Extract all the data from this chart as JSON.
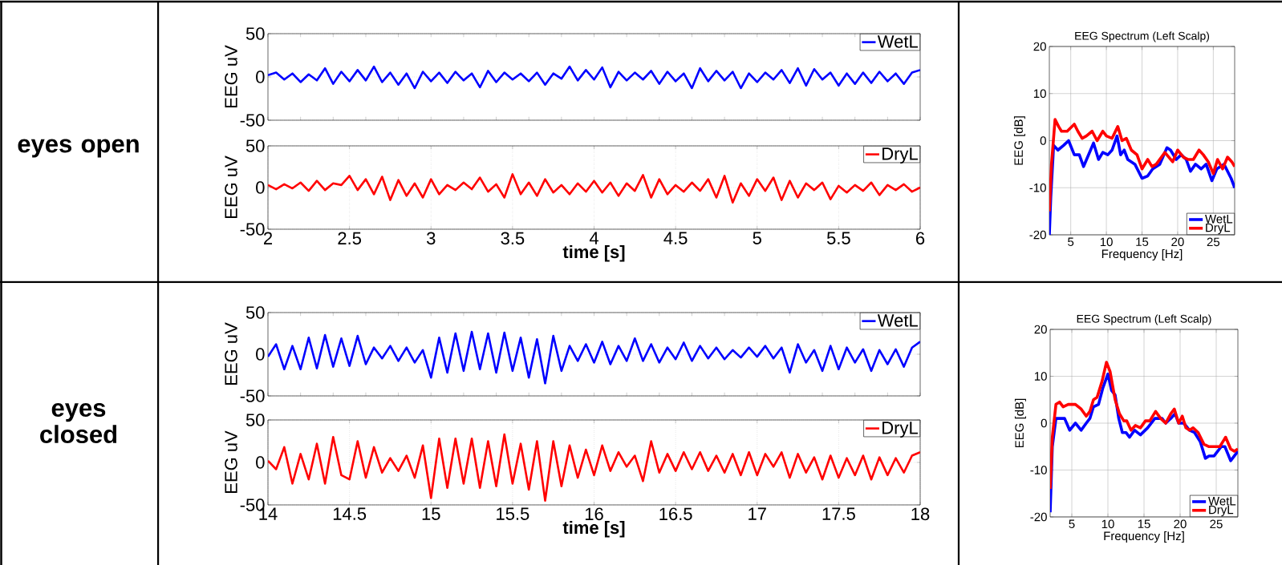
{
  "chart_data": [
    {
      "type": "line",
      "ylabel": "EEG uV",
      "annotations": [
        "eyes open"
      ],
      "xlim": [
        2,
        6
      ],
      "ylim": [
        -50,
        50
      ],
      "yticks": [
        -50,
        0,
        50
      ],
      "grid": "y",
      "legend": "top right",
      "tick_labels": "y",
      "x": [
        2,
        2.05,
        2.1,
        2.15,
        2.2,
        2.25,
        2.3,
        2.35,
        2.4,
        2.45,
        2.5,
        2.55,
        2.6,
        2.65,
        2.7,
        2.75,
        2.8,
        2.85,
        2.9,
        2.95,
        3,
        3.05,
        3.1,
        3.15,
        3.2,
        3.25,
        3.3,
        3.35,
        3.4,
        3.45,
        3.5,
        3.55,
        3.6,
        3.65,
        3.7,
        3.75,
        3.8,
        3.85,
        3.9,
        3.95,
        4,
        4.05,
        4.1,
        4.15,
        4.2,
        4.25,
        4.3,
        4.35,
        4.4,
        4.45,
        4.5,
        4.55,
        4.6,
        4.65,
        4.7,
        4.75,
        4.8,
        4.85,
        4.9,
        4.95,
        5,
        5.05,
        5.1,
        5.15,
        5.2,
        5.25,
        5.3,
        5.35,
        5.4,
        5.45,
        5.5,
        5.55,
        5.6,
        5.65,
        5.7,
        5.75,
        5.8,
        5.85,
        5.9,
        5.95,
        6
      ],
      "series": [
        {
          "name": "WetL",
          "color": "#0000ff",
          "values": [
            2,
            5,
            -3,
            4,
            -6,
            3,
            -4,
            10,
            -8,
            6,
            -5,
            8,
            -4,
            12,
            -6,
            5,
            -9,
            4,
            -13,
            6,
            -5,
            5,
            -7,
            6,
            -4,
            4,
            -12,
            7,
            -6,
            5,
            -3,
            4,
            -5,
            5,
            -9,
            4,
            -2,
            12,
            -4,
            8,
            -3,
            11,
            -12,
            6,
            -4,
            5,
            -3,
            7,
            -8,
            6,
            -5,
            4,
            -13,
            10,
            -5,
            7,
            -4,
            6,
            -13,
            4,
            -6,
            5,
            -3,
            8,
            -7,
            10,
            -10,
            9,
            -3,
            5,
            -10,
            4,
            -8,
            5,
            -7,
            6,
            -5,
            4,
            -8,
            5,
            8
          ]
        }
      ]
    },
    {
      "type": "line",
      "ylabel": "EEG uV",
      "xlabel": "time [s]",
      "xlim": [
        2,
        6
      ],
      "ylim": [
        -50,
        50
      ],
      "xticks": [
        2,
        2.5,
        3,
        3.5,
        4,
        4.5,
        5,
        5.5,
        6
      ],
      "yticks": [
        -50,
        0,
        50
      ],
      "grid": true,
      "legend": "top right",
      "x": [
        2,
        2.05,
        2.1,
        2.15,
        2.2,
        2.25,
        2.3,
        2.35,
        2.4,
        2.45,
        2.5,
        2.55,
        2.6,
        2.65,
        2.7,
        2.75,
        2.8,
        2.85,
        2.9,
        2.95,
        3,
        3.05,
        3.1,
        3.15,
        3.2,
        3.25,
        3.3,
        3.35,
        3.4,
        3.45,
        3.5,
        3.55,
        3.6,
        3.65,
        3.7,
        3.75,
        3.8,
        3.85,
        3.9,
        3.95,
        4,
        4.05,
        4.1,
        4.15,
        4.2,
        4.25,
        4.3,
        4.35,
        4.4,
        4.45,
        4.5,
        4.55,
        4.6,
        4.65,
        4.7,
        4.75,
        4.8,
        4.85,
        4.9,
        4.95,
        5,
        5.05,
        5.1,
        5.15,
        5.2,
        5.25,
        5.3,
        5.35,
        5.4,
        5.45,
        5.5,
        5.55,
        5.6,
        5.65,
        5.7,
        5.75,
        5.8,
        5.85,
        5.9,
        5.95,
        6
      ],
      "series": [
        {
          "name": "DryL",
          "color": "#ff0000",
          "values": [
            3,
            -2,
            4,
            -1,
            6,
            -4,
            8,
            -3,
            5,
            3,
            14,
            -3,
            10,
            -8,
            13,
            -15,
            9,
            -10,
            5,
            -12,
            10,
            -8,
            3,
            -3,
            6,
            -2,
            12,
            -5,
            4,
            -12,
            16,
            -8,
            6,
            -10,
            10,
            -6,
            3,
            -8,
            5,
            -5,
            8,
            -6,
            6,
            -10,
            5,
            -4,
            15,
            -12,
            10,
            -8,
            3,
            -5,
            6,
            -4,
            10,
            -12,
            14,
            -18,
            5,
            -10,
            10,
            -4,
            12,
            -15,
            8,
            -12,
            5,
            -3,
            6,
            -14,
            2,
            -6,
            3,
            -4,
            6,
            -9,
            3,
            -3,
            4,
            -5,
            0
          ]
        }
      ]
    },
    {
      "type": "line",
      "title": "EEG Spectrum (Left Scalp)",
      "xlabel": "Frequency [Hz]",
      "ylabel": "EEG [dB]",
      "xlim": [
        2,
        28
      ],
      "ylim": [
        -20,
        20
      ],
      "xticks": [
        5,
        10,
        15,
        20,
        25
      ],
      "yticks": [
        -20,
        -10,
        0,
        10,
        20
      ],
      "grid": true,
      "legend": "bottom right",
      "series": [
        {
          "name": "WetL",
          "color": "#0000ff",
          "x": [
            2,
            2.2,
            2.6,
            3.2,
            4,
            4.7,
            5.5,
            6.2,
            6.8,
            7.5,
            8.2,
            8.9,
            9.5,
            10.2,
            10.8,
            11.5,
            12,
            12.5,
            13,
            14,
            15,
            15.8,
            16.5,
            17.5,
            18.5,
            19,
            19.8,
            20.5,
            21.2,
            21.8,
            22.5,
            23.3,
            24,
            24.8,
            25.5,
            26.5,
            27.5,
            28
          ],
          "values": [
            -20,
            -12,
            -1,
            -2,
            -1,
            0,
            -3,
            -3,
            -5.5,
            -3,
            -0.5,
            -4,
            -2.5,
            -3,
            -2,
            1,
            -3,
            -2,
            -4,
            -5,
            -8,
            -7.5,
            -6,
            -5,
            -1.5,
            -2,
            -4,
            -3,
            -4,
            -6.5,
            -5,
            -6,
            -5,
            -8.5,
            -6,
            -5,
            -8,
            -10
          ]
        },
        {
          "name": "DryL",
          "color": "#ff0000",
          "x": [
            2,
            2.3,
            2.8,
            3.3,
            3.7,
            4.5,
            5.5,
            6,
            6.6,
            7.2,
            8,
            8.7,
            9.5,
            10,
            10.8,
            11.6,
            12.2,
            12.8,
            13.5,
            14.3,
            15,
            15.8,
            16.4,
            17,
            18.2,
            19.3,
            20,
            20.8,
            21.5,
            22.2,
            23,
            23.6,
            24.3,
            25,
            25.6,
            26.3,
            27,
            27.6,
            28
          ],
          "values": [
            -15,
            -5,
            4.5,
            3,
            2,
            2,
            3.5,
            2,
            0.5,
            1,
            2,
            0,
            2,
            1,
            0.5,
            3,
            0,
            0.5,
            -2,
            -3,
            -6,
            -4,
            -5.5,
            -5,
            -2.5,
            -4.5,
            -2,
            -3.5,
            -4,
            -4,
            -2,
            -3,
            -4.5,
            -7,
            -4,
            -6,
            -3.5,
            -4.5,
            -5.5
          ]
        }
      ]
    },
    {
      "type": "line",
      "ylabel": "EEG uV",
      "annotations": [
        "eyes closed"
      ],
      "xlim": [
        14,
        18
      ],
      "ylim": [
        -50,
        50
      ],
      "yticks": [
        -50,
        0,
        50
      ],
      "grid": "y",
      "legend": "top right",
      "tick_labels": "y",
      "x": [
        14,
        14.05,
        14.1,
        14.15,
        14.2,
        14.25,
        14.3,
        14.35,
        14.4,
        14.45,
        14.5,
        14.55,
        14.6,
        14.65,
        14.7,
        14.75,
        14.8,
        14.85,
        14.9,
        14.95,
        15,
        15.05,
        15.1,
        15.15,
        15.2,
        15.25,
        15.3,
        15.35,
        15.4,
        15.45,
        15.5,
        15.55,
        15.6,
        15.65,
        15.7,
        15.75,
        15.8,
        15.85,
        15.9,
        15.95,
        16,
        16.05,
        16.1,
        16.15,
        16.2,
        16.25,
        16.3,
        16.35,
        16.4,
        16.45,
        16.5,
        16.55,
        16.6,
        16.65,
        16.7,
        16.75,
        16.8,
        16.85,
        16.9,
        16.95,
        17,
        17.05,
        17.1,
        17.15,
        17.2,
        17.25,
        17.3,
        17.35,
        17.4,
        17.45,
        17.5,
        17.55,
        17.6,
        17.65,
        17.7,
        17.75,
        17.8,
        17.85,
        17.9,
        17.95,
        18
      ],
      "series": [
        {
          "name": "WetL",
          "color": "#0000ff",
          "values": [
            -3,
            12,
            -18,
            10,
            -18,
            20,
            -17,
            23,
            -15,
            19,
            -14,
            22,
            -12,
            8,
            -5,
            10,
            -8,
            8,
            -10,
            5,
            -28,
            20,
            -22,
            25,
            -20,
            27,
            -18,
            25,
            -22,
            26,
            -20,
            20,
            -28,
            18,
            -35,
            22,
            -20,
            10,
            -8,
            12,
            -10,
            15,
            -12,
            10,
            -8,
            19,
            -8,
            12,
            -10,
            8,
            -6,
            14,
            -8,
            10,
            -5,
            8,
            -6,
            5,
            -4,
            8,
            -3,
            10,
            -5,
            8,
            -22,
            12,
            -10,
            5,
            -20,
            10,
            -18,
            8,
            -10,
            6,
            -20,
            5,
            -12,
            6,
            -15,
            8,
            15
          ]
        }
      ]
    },
    {
      "type": "line",
      "ylabel": "EEG uV",
      "xlabel": "time [s]",
      "xlim": [
        14,
        18
      ],
      "ylim": [
        -50,
        50
      ],
      "xticks": [
        14,
        14.5,
        15,
        15.5,
        16,
        16.5,
        17,
        17.5,
        18
      ],
      "yticks": [
        -50,
        0,
        50
      ],
      "grid": true,
      "legend": "top right",
      "x": [
        14,
        14.05,
        14.1,
        14.15,
        14.2,
        14.25,
        14.3,
        14.35,
        14.4,
        14.45,
        14.5,
        14.55,
        14.6,
        14.65,
        14.7,
        14.75,
        14.8,
        14.85,
        14.9,
        14.95,
        15,
        15.05,
        15.1,
        15.15,
        15.2,
        15.25,
        15.3,
        15.35,
        15.4,
        15.45,
        15.5,
        15.55,
        15.6,
        15.65,
        15.7,
        15.75,
        15.8,
        15.85,
        15.9,
        15.95,
        16,
        16.05,
        16.1,
        16.15,
        16.2,
        16.25,
        16.3,
        16.35,
        16.4,
        16.45,
        16.5,
        16.55,
        16.6,
        16.65,
        16.7,
        16.75,
        16.8,
        16.85,
        16.9,
        16.95,
        17,
        17.05,
        17.1,
        17.15,
        17.2,
        17.25,
        17.3,
        17.35,
        17.4,
        17.45,
        17.5,
        17.55,
        17.6,
        17.65,
        17.7,
        17.75,
        17.8,
        17.85,
        17.9,
        17.95,
        18
      ],
      "series": [
        {
          "name": "DryL",
          "color": "#ff0000",
          "values": [
            2,
            -8,
            18,
            -25,
            10,
            -20,
            22,
            -25,
            30,
            -15,
            -20,
            25,
            -18,
            18,
            -12,
            5,
            -10,
            8,
            -18,
            20,
            -42,
            28,
            -30,
            28,
            -25,
            28,
            -30,
            25,
            -28,
            33,
            -25,
            22,
            -32,
            25,
            -45,
            25,
            -28,
            20,
            -18,
            15,
            -15,
            20,
            -10,
            12,
            -5,
            8,
            -22,
            25,
            -12,
            10,
            -10,
            12,
            -8,
            12,
            -10,
            8,
            -12,
            10,
            -15,
            12,
            -15,
            10,
            -5,
            12,
            -18,
            10,
            -12,
            6,
            -20,
            8,
            -18,
            5,
            -15,
            8,
            -20,
            6,
            -15,
            5,
            -12,
            8,
            12
          ]
        }
      ]
    },
    {
      "type": "line",
      "title": "EEG Spectrum (Left Scalp)",
      "xlabel": "Frequency [Hz]",
      "ylabel": "EEG [dB]",
      "xlim": [
        2,
        28
      ],
      "ylim": [
        -20,
        20
      ],
      "xticks": [
        5,
        10,
        15,
        20,
        25
      ],
      "yticks": [
        -20,
        -10,
        0,
        10,
        20
      ],
      "grid": true,
      "legend": "bottom right",
      "series": [
        {
          "name": "WetL",
          "color": "#0000ff",
          "x": [
            2,
            2.3,
            2.8,
            3.5,
            4,
            4.7,
            5.5,
            6.3,
            7,
            7.5,
            8,
            8.7,
            9.3,
            10,
            10.5,
            11,
            11.5,
            12,
            12.5,
            13,
            13.7,
            14.5,
            15.5,
            16.5,
            17.5,
            18,
            18.7,
            19.3,
            19.8,
            20.5,
            21.3,
            22,
            22.8,
            23.5,
            24,
            24.7,
            25.7,
            26.2,
            27,
            27.5,
            28
          ],
          "values": [
            -19,
            -5,
            1,
            1,
            1,
            -1.5,
            0,
            -1.5,
            0,
            1,
            3.5,
            4,
            7.5,
            10.5,
            7,
            6,
            1,
            -2,
            -2,
            -3,
            -1.5,
            -2.5,
            -1,
            1,
            1,
            0,
            1,
            2,
            0,
            0,
            -1.5,
            -2,
            -4,
            -7.5,
            -7,
            -7,
            -5,
            -5,
            -8,
            -7,
            -6
          ]
        },
        {
          "name": "DryL",
          "color": "#ff0000",
          "x": [
            2,
            2.3,
            2.8,
            3.3,
            3.8,
            4.5,
            5.5,
            6.3,
            7,
            7.5,
            8,
            8.5,
            9.2,
            9.8,
            10.3,
            11,
            11.6,
            12.2,
            12.6,
            13.2,
            13.8,
            14.5,
            15.2,
            15.8,
            16.6,
            17.3,
            18,
            18.7,
            19.2,
            19.8,
            20.3,
            20.8,
            21.3,
            21.8,
            22.5,
            23.3,
            24,
            24.8,
            25.5,
            26.3,
            27,
            27.5,
            28
          ],
          "values": [
            -14,
            -3,
            4,
            4.5,
            3.5,
            4,
            4,
            3,
            1.5,
            2.5,
            5,
            5.5,
            9,
            13,
            11,
            5,
            2,
            0.5,
            0.5,
            -1.5,
            -0.5,
            -1,
            0.5,
            0.5,
            2.5,
            1,
            0,
            2,
            3,
            0,
            1.5,
            -1,
            -1.5,
            -1,
            -2,
            -4.5,
            -5,
            -5,
            -5,
            -3,
            -5.5,
            -6,
            -5.5
          ]
        }
      ]
    }
  ]
}
